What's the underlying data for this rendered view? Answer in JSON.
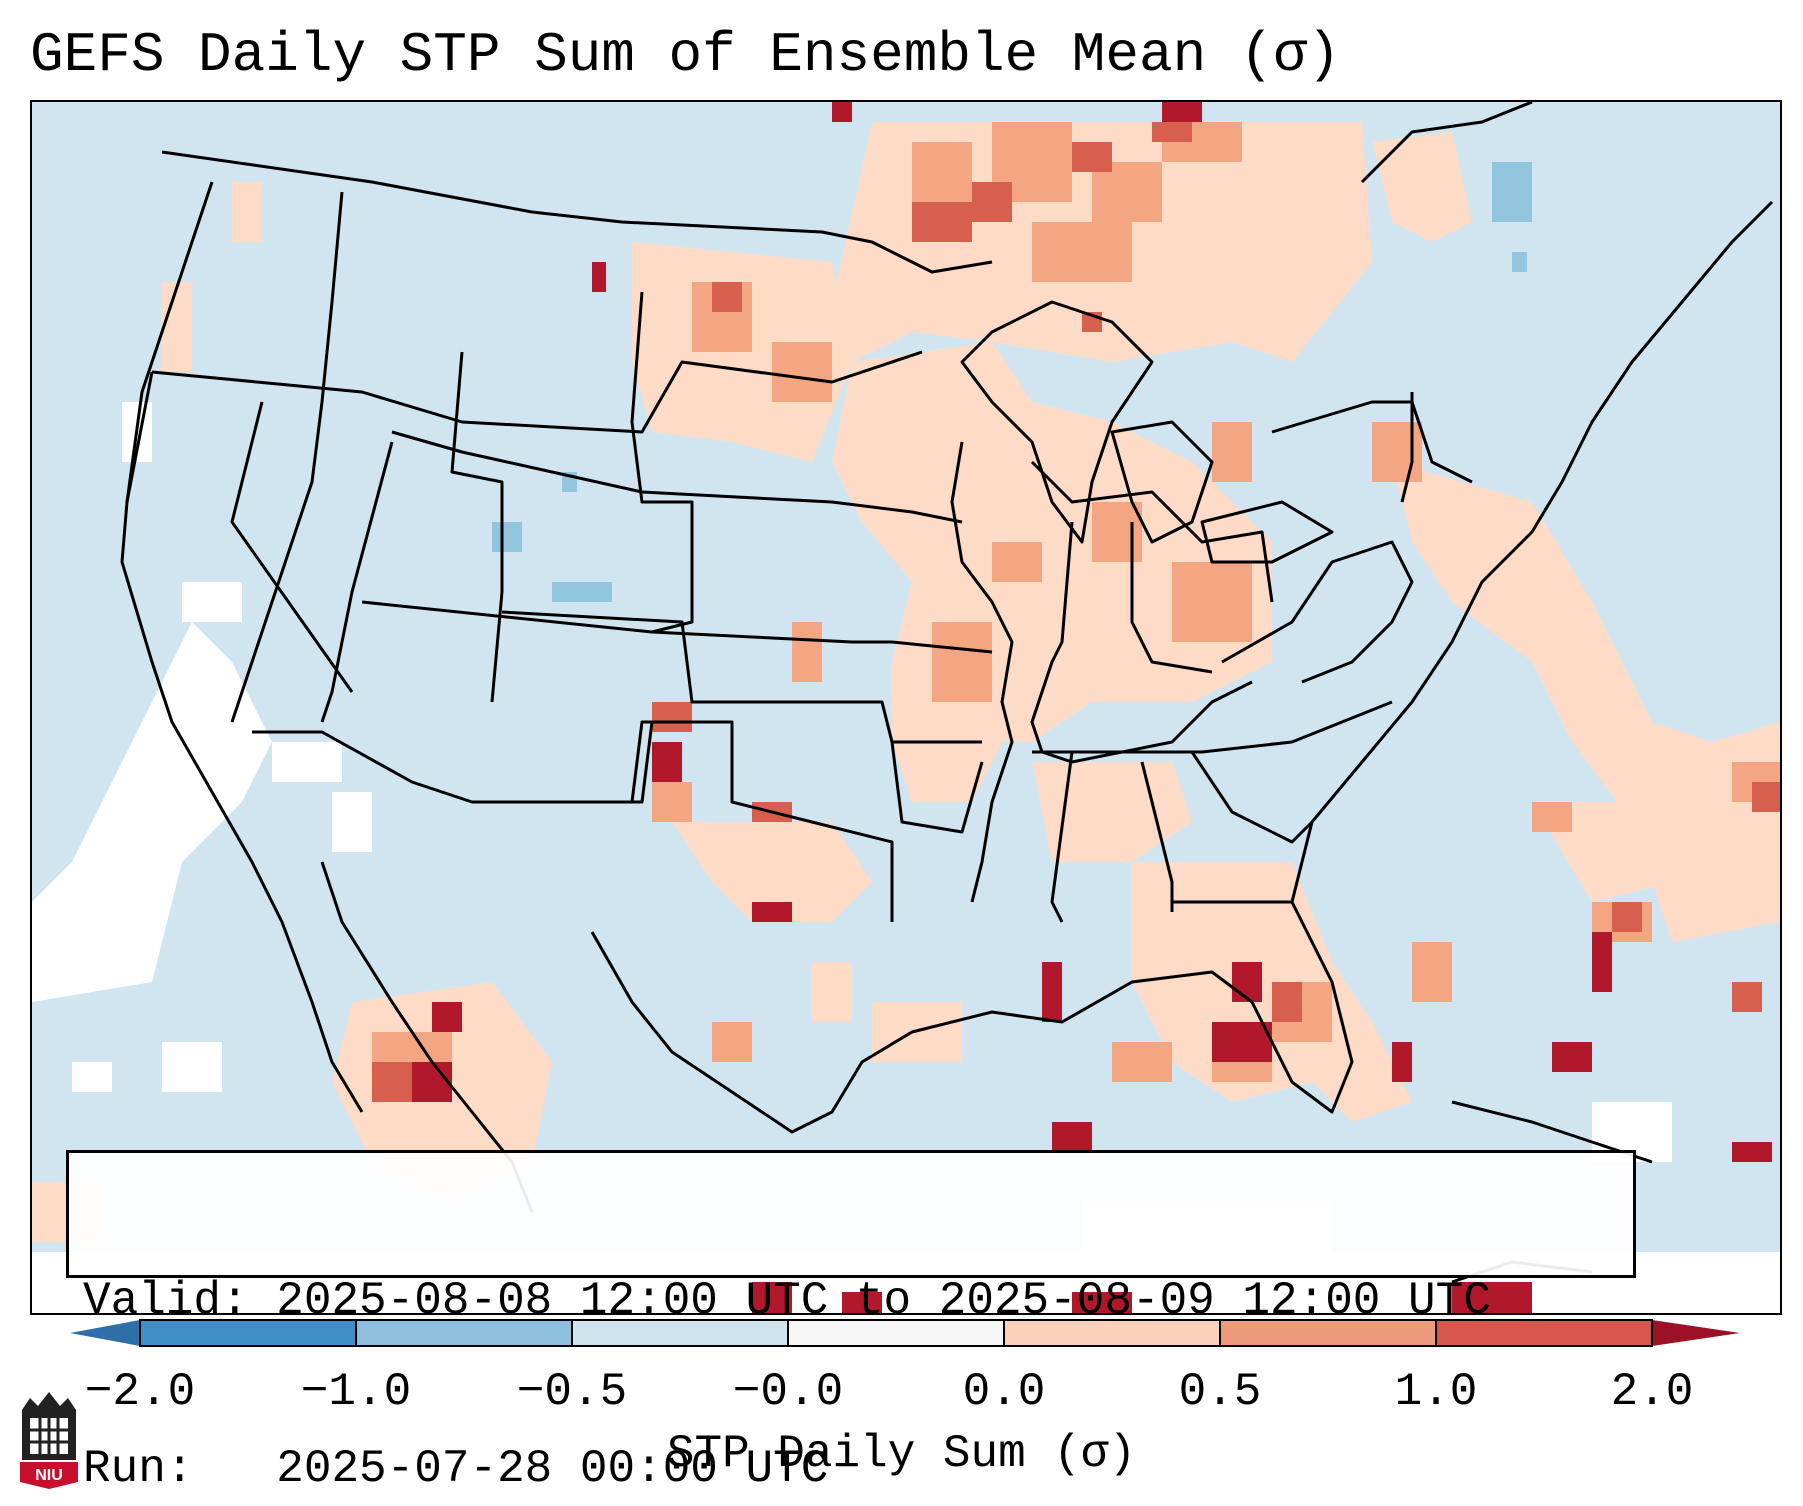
{
  "figure": {
    "title": "GEFS Daily STP Sum of Ensemble Mean (σ)",
    "valid_line": "Valid: 2025-08-08 12:00 UTC to 2025-08-09 12:00 UTC",
    "run_line": "Run:   2025-07-28 00:00 UTC",
    "logo_text": "NIU"
  },
  "colorbar": {
    "label": "STP Daily Sum (σ)",
    "ticks": [
      "−2.0",
      "−1.0",
      "−0.5",
      "−0.0",
      "0.0",
      "0.5",
      "1.0",
      "2.0"
    ],
    "colors": [
      "#3f8fc6",
      "#8dc0de",
      "#cfe3ef",
      "#f6f6f6",
      "#fbd1bc",
      "#ee9a7d",
      "#d6574d",
      "#b2182b"
    ],
    "under_color": "#2e6fa9",
    "over_color": "#9b1226"
  },
  "map_colors": {
    "background": "#d1e5f0",
    "land_fill": "#d1e5f0",
    "light_anomaly": "#fddbc7",
    "moderate_anomaly": "#f4a582",
    "strong_anomaly": "#d6604d",
    "extreme_anomaly": "#b2182b",
    "negative_anomaly": "#92c5de",
    "near_zero": "#ffffff"
  }
}
